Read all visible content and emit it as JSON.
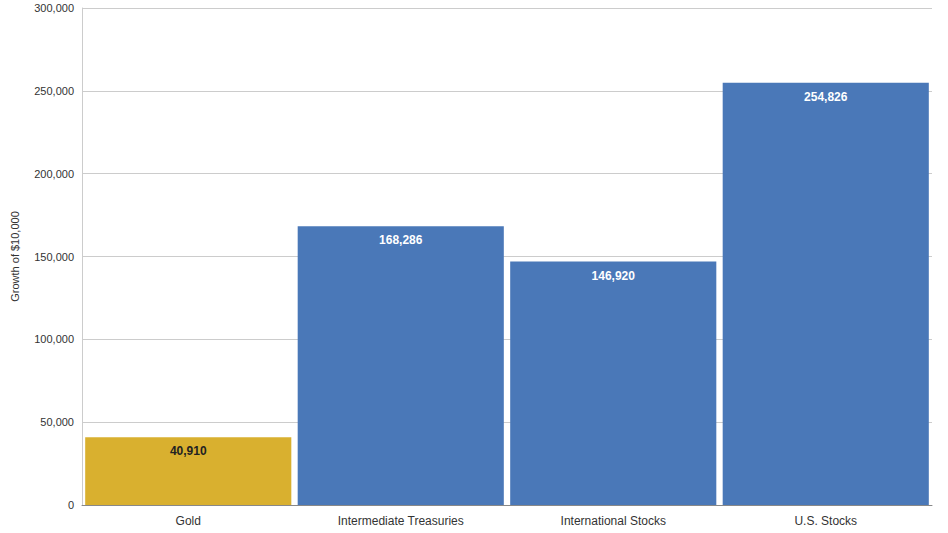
{
  "chart_data": {
    "type": "bar",
    "y_label": "Growth of $10,000",
    "categories": [
      "Gold",
      "Intermediate Treasuries",
      "International Stocks",
      "U.S. Stocks"
    ],
    "values": [
      40910,
      168286,
      146920,
      254826
    ],
    "value_labels": [
      "40,910",
      "168,286",
      "146,920",
      "254,826"
    ],
    "colors": [
      "#d9b02f",
      "#4a78b8",
      "#4a78b8",
      "#4a78b8"
    ],
    "ylim": [
      0,
      300000
    ],
    "yticks": [
      0,
      {
        "value": 50000,
        "label": "50,000"
      },
      {
        "value": 100000,
        "label": "100,000"
      },
      {
        "value": 150000,
        "label": "150,000"
      },
      {
        "value": 200000,
        "label": "200,000"
      },
      {
        "value": 250000,
        "label": "250,000"
      },
      {
        "value": 300000,
        "label": "300,000"
      }
    ],
    "grid": true,
    "data_labels": true
  }
}
